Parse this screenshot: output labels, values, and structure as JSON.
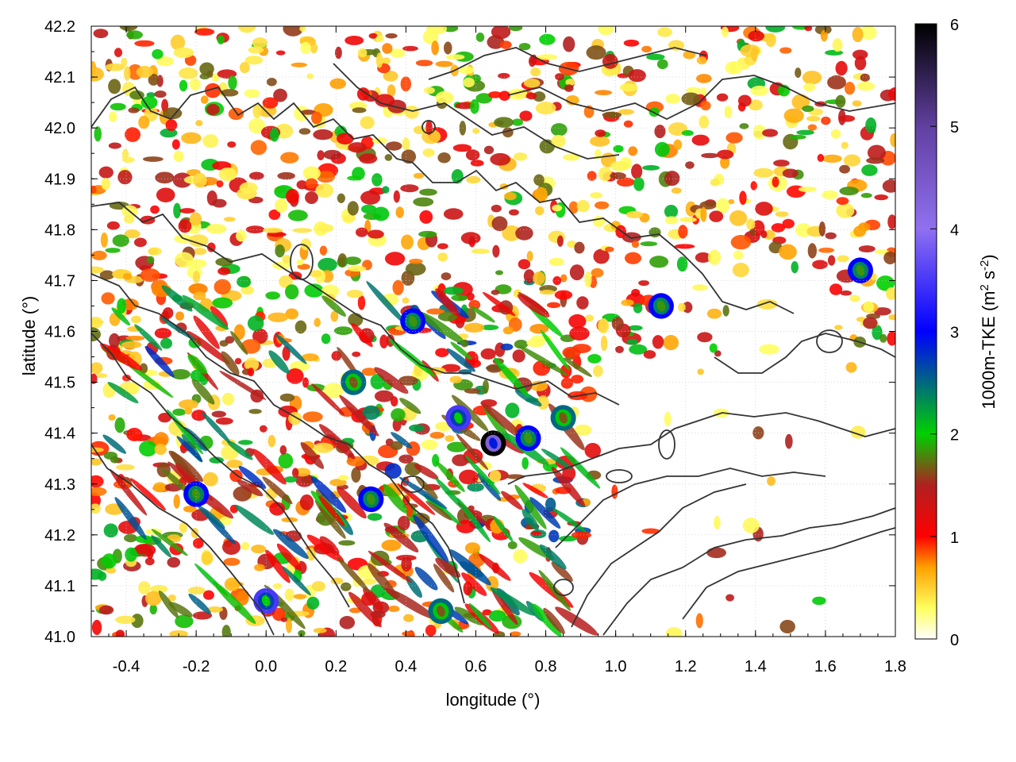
{
  "chart_data": {
    "type": "heatmap",
    "xlabel": "longitude (°)",
    "ylabel": "latitude (°)",
    "colorbar_label_text": "1000m-TKE (m",
    "colorbar_label_sup1": "2",
    "colorbar_label_mid": " s",
    "colorbar_label_sup2": "-2",
    "colorbar_label_close": ")",
    "xlim": [
      -0.5,
      1.8
    ],
    "ylim": [
      41.0,
      42.2
    ],
    "x_ticks": [
      -0.4,
      -0.2,
      0.0,
      0.2,
      0.4,
      0.6,
      0.8,
      1.0,
      1.2,
      1.4,
      1.6,
      1.8
    ],
    "x_tick_labels": [
      "-0.4",
      "-0.2",
      "0.0",
      "0.2",
      "0.4",
      "0.6",
      "0.8",
      "1.0",
      "1.2",
      "1.4",
      "1.6",
      "1.8"
    ],
    "y_ticks": [
      41.0,
      41.1,
      41.2,
      41.3,
      41.4,
      41.5,
      41.6,
      41.7,
      41.8,
      41.9,
      42.0,
      42.1,
      42.2
    ],
    "y_tick_labels": [
      "41.0",
      "41.1",
      "41.2",
      "41.3",
      "41.4",
      "41.5",
      "41.6",
      "41.7",
      "41.8",
      "41.9",
      "42.0",
      "42.1",
      "42.2"
    ],
    "colorbar_range": [
      0,
      6
    ],
    "colorbar_ticks": [
      0,
      1,
      2,
      3,
      4,
      5,
      6
    ],
    "colorbar_tick_labels": [
      "0",
      "1",
      "2",
      "3",
      "4",
      "5",
      "6"
    ],
    "colormap": [
      {
        "v": 0.0,
        "color": "#ffffff"
      },
      {
        "v": 0.3,
        "color": "#ffff60"
      },
      {
        "v": 0.7,
        "color": "#ffa000"
      },
      {
        "v": 1.0,
        "color": "#ff0000"
      },
      {
        "v": 1.5,
        "color": "#b02020"
      },
      {
        "v": 2.0,
        "color": "#00d000"
      },
      {
        "v": 3.0,
        "color": "#0000ff"
      },
      {
        "v": 4.0,
        "color": "#9070f0"
      },
      {
        "v": 5.0,
        "color": "#6040a0"
      },
      {
        "v": 6.0,
        "color": "#000000"
      }
    ],
    "grid": true,
    "contour_color": "#333333",
    "field_hotspots": [
      {
        "lon": 0.65,
        "lat": 41.38,
        "value": 6.0
      },
      {
        "lon": 0.55,
        "lat": 41.43,
        "value": 3.5
      },
      {
        "lon": 0.75,
        "lat": 41.39,
        "value": 3.0
      },
      {
        "lon": 0.0,
        "lat": 41.07,
        "value": 3.5
      },
      {
        "lon": 0.42,
        "lat": 41.62,
        "value": 3.0
      },
      {
        "lon": 0.3,
        "lat": 41.27,
        "value": 3.0
      },
      {
        "lon": -0.2,
        "lat": 41.28,
        "value": 3.0
      },
      {
        "lon": 1.7,
        "lat": 41.72,
        "value": 3.0
      },
      {
        "lon": 1.13,
        "lat": 41.65,
        "value": 3.0
      },
      {
        "lon": 0.85,
        "lat": 41.43,
        "value": 2.5
      },
      {
        "lon": 0.25,
        "lat": 41.5,
        "value": 2.5
      },
      {
        "lon": 0.5,
        "lat": 41.05,
        "value": 2.5
      }
    ]
  },
  "colors": {
    "background": "#ffffff",
    "frame": "#000000",
    "contour": "#333333"
  }
}
